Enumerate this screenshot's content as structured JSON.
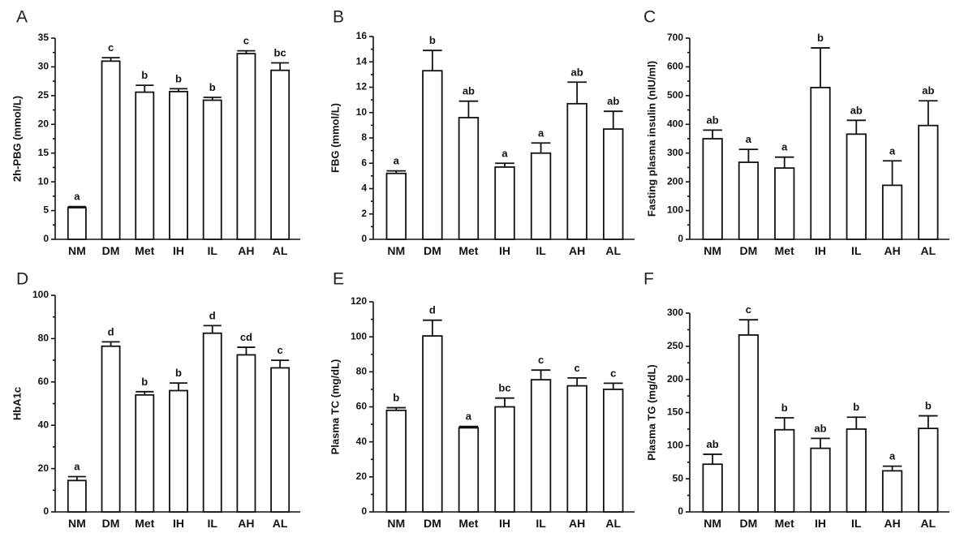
{
  "chart_data": [
    {
      "type": "bar",
      "panel": "A",
      "categories": [
        "NM",
        "DM",
        "Met",
        "IH",
        "IL",
        "AH",
        "AL"
      ],
      "values": [
        5.5,
        31.0,
        25.6,
        25.7,
        24.2,
        32.3,
        29.4
      ],
      "errors": [
        0.2,
        0.6,
        1.2,
        0.5,
        0.5,
        0.5,
        1.3
      ],
      "significance": [
        "a",
        "c",
        "b",
        "b",
        "b",
        "c",
        "bc"
      ],
      "ylabel": "2h-PBG (mmol/L)",
      "ylim": [
        0,
        35
      ],
      "yticks": [
        0,
        5,
        10,
        15,
        20,
        25,
        30,
        35
      ]
    },
    {
      "type": "bar",
      "panel": "B",
      "categories": [
        "NM",
        "DM",
        "Met",
        "IH",
        "IL",
        "AH",
        "AL"
      ],
      "values": [
        5.2,
        13.3,
        9.6,
        5.7,
        6.8,
        10.7,
        8.7
      ],
      "errors": [
        0.2,
        1.6,
        1.3,
        0.3,
        0.8,
        1.7,
        1.4
      ],
      "significance": [
        "a",
        "b",
        "ab",
        "a",
        "a",
        "ab",
        "ab"
      ],
      "ylabel": "FBG (mmol/L)",
      "ylim": [
        0,
        16
      ],
      "yticks": [
        0,
        2,
        4,
        6,
        8,
        10,
        12,
        14,
        16
      ]
    },
    {
      "type": "bar",
      "panel": "C",
      "categories": [
        "NM",
        "DM",
        "Met",
        "IH",
        "IL",
        "AH",
        "AL"
      ],
      "values": [
        350,
        268,
        248,
        528,
        366,
        188,
        396
      ],
      "errors": [
        30,
        45,
        38,
        138,
        48,
        85,
        86
      ],
      "significance": [
        "ab",
        "a",
        "a",
        "b",
        "ab",
        "a",
        "ab"
      ],
      "ylabel": "Fasting plasma insulin (nIU/ml)",
      "ylim": [
        0,
        700
      ],
      "yticks": [
        0,
        100,
        200,
        300,
        400,
        500,
        600,
        700
      ]
    },
    {
      "type": "bar",
      "panel": "D",
      "categories": [
        "NM",
        "DM",
        "Met",
        "IH",
        "IL",
        "AH",
        "AL"
      ],
      "values": [
        14.5,
        76.5,
        54.0,
        56.0,
        82.5,
        72.5,
        66.5
      ],
      "errors": [
        1.8,
        2.0,
        1.5,
        3.5,
        3.5,
        3.5,
        3.5
      ],
      "significance": [
        "a",
        "d",
        "b",
        "b",
        "d",
        "cd",
        "c"
      ],
      "ylabel": "HbA1c",
      "ylim": [
        0,
        100
      ],
      "yticks": [
        0,
        20,
        40,
        60,
        80,
        100
      ]
    },
    {
      "type": "bar",
      "panel": "E",
      "categories": [
        "NM",
        "DM",
        "Met",
        "IH",
        "IL",
        "AH",
        "AL"
      ],
      "values": [
        58,
        100.5,
        48,
        60,
        75.5,
        72,
        70
      ],
      "errors": [
        1.5,
        9.0,
        0.8,
        5.0,
        5.5,
        4.5,
        3.5
      ],
      "significance": [
        "b",
        "d",
        "a",
        "bc",
        "c",
        "c",
        "c"
      ],
      "ylabel": "Plasma TC (mg/dL)",
      "ylim": [
        0,
        120
      ],
      "yticks": [
        0,
        20,
        40,
        60,
        80,
        100,
        120
      ]
    },
    {
      "type": "bar",
      "panel": "F",
      "categories": [
        "NM",
        "DM",
        "Met",
        "IH",
        "IL",
        "AH",
        "AL"
      ],
      "values": [
        72,
        267,
        124,
        96,
        125,
        62,
        126
      ],
      "errors": [
        15,
        23,
        18,
        15,
        18,
        7,
        19
      ],
      "significance": [
        "ab",
        "c",
        "b",
        "ab",
        "b",
        "a",
        "b"
      ],
      "ylabel": "Plasma TG (mg/dL)",
      "ylim": [
        0,
        300
      ],
      "yticks": [
        0,
        50,
        100,
        150,
        200,
        250,
        300
      ]
    }
  ]
}
